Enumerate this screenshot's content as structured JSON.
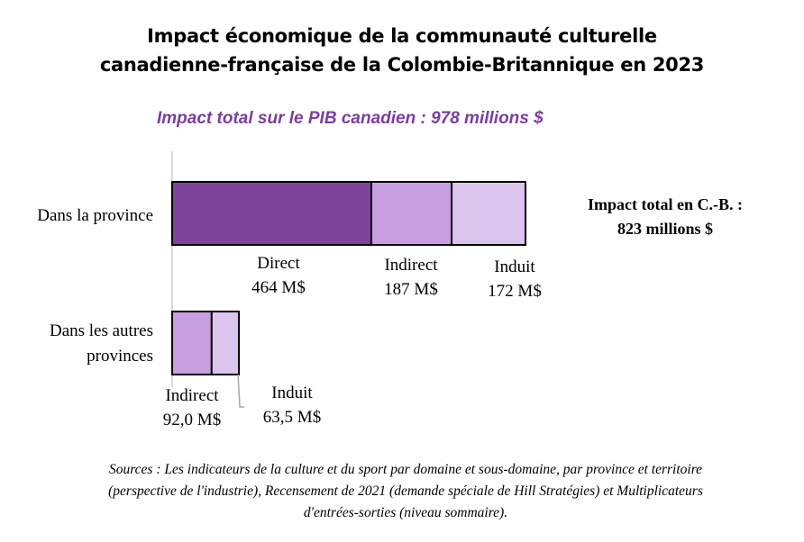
{
  "title": {
    "line1": "Impact économique de la communauté culturelle",
    "line2": "canadienne-française de la Colombie-Britannique en 2023"
  },
  "subtitle": "Impact total sur le PIB canadien : 978 millions $",
  "annotation": {
    "line1": "Impact total en C.-B. :",
    "line2": "823 millions $"
  },
  "sources": {
    "line1": "Sources : Les indicateurs de la culture et du sport par domaine et sous-domaine, par province et territoire",
    "line2": "(perspective de l'industrie), Recensement de 2021 (demande spéciale de Hill Stratégies) et Multiplicateurs",
    "line3": "d'entrées-sorties  (niveau sommaire)."
  },
  "colors": {
    "direct": "#7e439b",
    "indirect": "#c79fe0",
    "induit": "#dcc5ed",
    "border": "#000000",
    "axis": "#d9d9d9",
    "leader": "#a6a6a6"
  },
  "chart_data": {
    "type": "bar",
    "orientation": "horizontal",
    "stacked": true,
    "unit": "M$",
    "categories": [
      {
        "label_lines": [
          "Dans la province"
        ]
      },
      {
        "label_lines": [
          "Dans les autres",
          "provinces"
        ]
      }
    ],
    "series": [
      {
        "name": "Direct",
        "values": [
          464,
          0
        ],
        "labels": [
          "464 M$",
          ""
        ]
      },
      {
        "name": "Indirect",
        "values": [
          187,
          92.0
        ],
        "labels": [
          "187 M$",
          "92,0 M$"
        ]
      },
      {
        "name": "Induit",
        "values": [
          172,
          63.5
        ],
        "labels": [
          "172 M$",
          "63,5 M$"
        ]
      }
    ],
    "xlim": [
      0,
      978
    ]
  }
}
